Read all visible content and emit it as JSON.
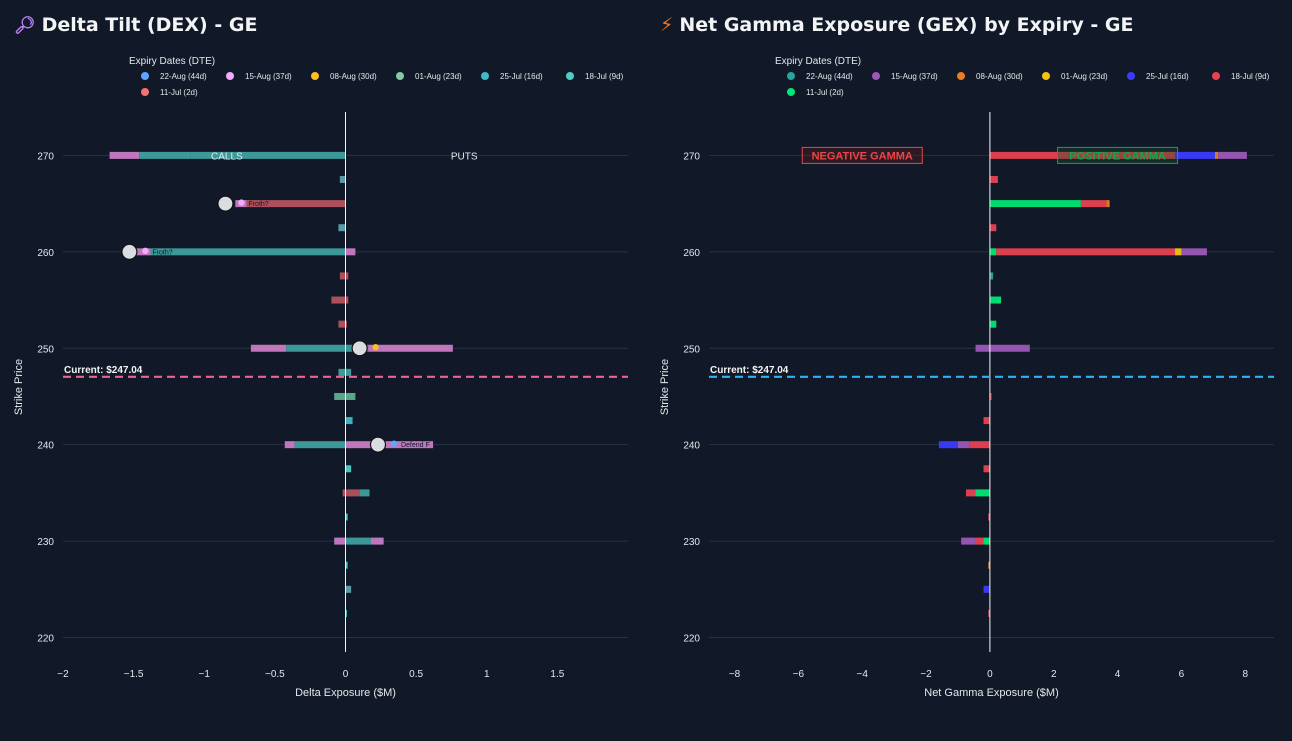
{
  "chart_data": [
    {
      "id": "dex",
      "type": "bar",
      "orientation": "horizontal",
      "title": "Delta Tilt (DEX) - GE",
      "title_icon": "magnifier-icon",
      "xlabel": "Delta Exposure ($M)",
      "ylabel": "Strike Price",
      "xlim": [
        -2,
        2
      ],
      "ylim": [
        218.5,
        274.5
      ],
      "xticks": [
        -2,
        -1.5,
        -1,
        -0.5,
        0,
        0.5,
        1,
        1.5
      ],
      "xtick_labels": [
        "−2",
        "−1.5",
        "−1",
        "−0.5",
        "0",
        "0.5",
        "1",
        "1.5"
      ],
      "yticks": [
        220,
        230,
        240,
        250,
        260,
        270
      ],
      "legend_title": "Expiry Dates (DTE)",
      "legend": [
        {
          "label": "22-Aug (44d)",
          "color": "#60a5fa"
        },
        {
          "label": "15-Aug (37d)",
          "color": "#f0abfc"
        },
        {
          "label": "08-Aug (30d)",
          "color": "#fbbf24"
        },
        {
          "label": "01-Aug (23d)",
          "color": "#86c9a4"
        },
        {
          "label": "25-Jul (16d)",
          "color": "#3fb8c9"
        },
        {
          "label": "18-Jul (9d)",
          "color": "#4ecdc4"
        },
        {
          "label": "11-Jul (2d)",
          "color": "#f87171"
        }
      ],
      "current_price": {
        "value": 247.04,
        "label": "Current: $247.04",
        "color": "#f06292"
      },
      "side_labels": [
        {
          "text": "CALLS",
          "x": -0.84,
          "strike": 270
        },
        {
          "text": "PUTS",
          "x": 0.84,
          "strike": 270
        }
      ],
      "rows": [
        {
          "strike": 270,
          "segments": [
            {
              "from": -1.67,
              "to": -1.46,
              "color": "#c97bc4"
            },
            {
              "from": -1.46,
              "to": -1.1,
              "color": "#3f9f9f"
            },
            {
              "from": -1.1,
              "to": 0,
              "color": "#3f9f9f"
            }
          ]
        },
        {
          "strike": 267.5,
          "segments": [
            {
              "from": -0.04,
              "to": 0,
              "color": "#5fa0b0"
            }
          ]
        },
        {
          "strike": 265,
          "segments": [
            {
              "from": -0.78,
              "to": -0.7,
              "color": "#c97bc4"
            },
            {
              "from": -0.7,
              "to": 0,
              "color": "#b5525e"
            }
          ]
        },
        {
          "strike": 262.5,
          "segments": [
            {
              "from": -0.05,
              "to": 0,
              "color": "#5fa0b0"
            }
          ]
        },
        {
          "strike": 260,
          "segments": [
            {
              "from": -1.5,
              "to": -1.38,
              "color": "#c97bc4"
            },
            {
              "from": -1.38,
              "to": 0,
              "color": "#3f9f9f"
            },
            {
              "from": 0,
              "to": 0.07,
              "color": "#c97bc4"
            }
          ]
        },
        {
          "strike": 257.5,
          "segments": [
            {
              "from": -0.04,
              "to": 0.02,
              "color": "#b5525e"
            }
          ]
        },
        {
          "strike": 255,
          "segments": [
            {
              "from": -0.1,
              "to": 0.02,
              "color": "#b5525e"
            }
          ]
        },
        {
          "strike": 252.5,
          "segments": [
            {
              "from": -0.05,
              "to": 0.01,
              "color": "#b5525e"
            }
          ]
        },
        {
          "strike": 250,
          "segments": [
            {
              "from": -0.67,
              "to": -0.42,
              "color": "#c97bc4"
            },
            {
              "from": -0.42,
              "to": 0,
              "color": "#3f9f9f"
            },
            {
              "from": 0,
              "to": 0.16,
              "color": "#3f9f9f"
            },
            {
              "from": 0.16,
              "to": 0.76,
              "color": "#c97bc4"
            }
          ]
        },
        {
          "strike": 247.5,
          "segments": [
            {
              "from": -0.05,
              "to": 0.04,
              "color": "#3f9f9f"
            }
          ]
        },
        {
          "strike": 245,
          "segments": [
            {
              "from": -0.08,
              "to": 0.07,
              "color": "#5fae8f"
            }
          ]
        },
        {
          "strike": 242.5,
          "segments": [
            {
              "from": 0,
              "to": 0.05,
              "color": "#3fb8c9"
            }
          ]
        },
        {
          "strike": 240,
          "segments": [
            {
              "from": -0.43,
              "to": -0.36,
              "color": "#c97bc4"
            },
            {
              "from": -0.36,
              "to": 0,
              "color": "#3f9f9f"
            },
            {
              "from": 0,
              "to": 0.62,
              "color": "#c97bc4"
            }
          ]
        },
        {
          "strike": 237.5,
          "segments": [
            {
              "from": 0,
              "to": 0.04,
              "color": "#4ecdc4"
            }
          ]
        },
        {
          "strike": 235,
          "segments": [
            {
              "from": -0.02,
              "to": 0.1,
              "color": "#b5525e"
            },
            {
              "from": 0.1,
              "to": 0.17,
              "color": "#3f9f9f"
            }
          ]
        },
        {
          "strike": 232.5,
          "segments": [
            {
              "from": 0,
              "to": 0.015,
              "color": "#4ecdc4"
            }
          ]
        },
        {
          "strike": 230,
          "segments": [
            {
              "from": -0.08,
              "to": 0,
              "color": "#c97bc4"
            },
            {
              "from": 0,
              "to": 0.18,
              "color": "#3f9f9f"
            },
            {
              "from": 0.18,
              "to": 0.27,
              "color": "#c97bc4"
            }
          ]
        },
        {
          "strike": 227.5,
          "segments": [
            {
              "from": 0,
              "to": 0.015,
              "color": "#4ecdc4"
            }
          ]
        },
        {
          "strike": 225,
          "segments": [
            {
              "from": 0,
              "to": 0.04,
              "color": "#5fa0b0"
            }
          ]
        },
        {
          "strike": 222.5,
          "segments": [
            {
              "from": 0,
              "to": 0.01,
              "color": "#4ecdc4"
            }
          ]
        }
      ],
      "markers": [
        {
          "strike": 265,
          "x": -0.85,
          "tag": "Froth?",
          "tag_color": "#f0abfc"
        },
        {
          "strike": 260,
          "x": -1.53,
          "tag": "Froth?",
          "tag_color": "#f0abfc"
        },
        {
          "strike": 250,
          "x": 0.1,
          "tag": "",
          "tag_color": "#fbbf24"
        },
        {
          "strike": 240,
          "x": 0.23,
          "tag": "Defend F",
          "tag_color": "#60a5fa"
        }
      ],
      "boxes": []
    },
    {
      "id": "gex",
      "type": "bar",
      "orientation": "horizontal",
      "title": "Net Gamma Exposure (GEX) by Expiry - GE",
      "title_icon": "lightning-icon",
      "xlabel": "Net Gamma Exposure ($M)",
      "ylabel": "Strike Price",
      "xlim": [
        -8.8,
        8.9
      ],
      "ylim": [
        218.5,
        274.5
      ],
      "xticks": [
        -8,
        -6,
        -4,
        -2,
        0,
        2,
        4,
        6,
        8
      ],
      "xtick_labels": [
        "−8",
        "−6",
        "−4",
        "−2",
        "0",
        "2",
        "4",
        "6",
        "8"
      ],
      "yticks": [
        220,
        230,
        240,
        250,
        260,
        270
      ],
      "legend_title": "Expiry Dates (DTE)",
      "legend": [
        {
          "label": "22-Aug (44d)",
          "color": "#26a69a"
        },
        {
          "label": "15-Aug (37d)",
          "color": "#9b59b6"
        },
        {
          "label": "08-Aug (30d)",
          "color": "#e67e22"
        },
        {
          "label": "01-Aug (23d)",
          "color": "#f1c40f"
        },
        {
          "label": "25-Jul (16d)",
          "color": "#3b3bff"
        },
        {
          "label": "18-Jul (9d)",
          "color": "#e84150"
        },
        {
          "label": "11-Jul (2d)",
          "color": "#00e676"
        }
      ],
      "current_price": {
        "value": 247.04,
        "label": "Current: $247.04",
        "color": "#29b6f6"
      },
      "side_labels": [],
      "rows": [
        {
          "strike": 270,
          "segments": [
            {
              "from": 0,
              "to": 5.8,
              "color": "#e84150"
            },
            {
              "from": 5.8,
              "to": 7.05,
              "color": "#3b3bff"
            },
            {
              "from": 7.05,
              "to": 7.15,
              "color": "#e67e22"
            },
            {
              "from": 7.15,
              "to": 8.05,
              "color": "#9b59b6"
            }
          ]
        },
        {
          "strike": 267.5,
          "segments": [
            {
              "from": 0,
              "to": 0.25,
              "color": "#e84150"
            }
          ]
        },
        {
          "strike": 265,
          "segments": [
            {
              "from": 0,
              "to": 2.85,
              "color": "#00e676"
            },
            {
              "from": 2.85,
              "to": 3.65,
              "color": "#e84150"
            },
            {
              "from": 3.65,
              "to": 3.75,
              "color": "#e67e22"
            }
          ]
        },
        {
          "strike": 262.5,
          "segments": [
            {
              "from": 0,
              "to": 0.2,
              "color": "#e84150"
            }
          ]
        },
        {
          "strike": 260,
          "segments": [
            {
              "from": 0,
              "to": 0.2,
              "color": "#00e676"
            },
            {
              "from": 0.2,
              "to": 5.8,
              "color": "#e84150"
            },
            {
              "from": 5.8,
              "to": 6.0,
              "color": "#f1c40f"
            },
            {
              "from": 6.0,
              "to": 6.8,
              "color": "#9b59b6"
            }
          ]
        },
        {
          "strike": 257.5,
          "segments": [
            {
              "from": 0,
              "to": 0.1,
              "color": "#26a69a"
            }
          ]
        },
        {
          "strike": 255,
          "segments": [
            {
              "from": 0,
              "to": 0.35,
              "color": "#00e676"
            }
          ]
        },
        {
          "strike": 252.5,
          "segments": [
            {
              "from": 0,
              "to": 0.2,
              "color": "#00e676"
            }
          ]
        },
        {
          "strike": 250,
          "segments": [
            {
              "from": -0.45,
              "to": 0,
              "color": "#9b59b6"
            },
            {
              "from": 0,
              "to": 1.25,
              "color": "#9b59b6"
            }
          ]
        },
        {
          "strike": 245,
          "segments": [
            {
              "from": 0,
              "to": 0.05,
              "color": "#e84150"
            }
          ]
        },
        {
          "strike": 242.5,
          "segments": [
            {
              "from": -0.2,
              "to": 0,
              "color": "#e84150"
            }
          ]
        },
        {
          "strike": 240,
          "segments": [
            {
              "from": -1.6,
              "to": -1.0,
              "color": "#3b3bff"
            },
            {
              "from": -1.0,
              "to": -0.65,
              "color": "#9b59b6"
            },
            {
              "from": -0.65,
              "to": 0,
              "color": "#e84150"
            }
          ]
        },
        {
          "strike": 237.5,
          "segments": [
            {
              "from": -0.2,
              "to": 0,
              "color": "#e84150"
            }
          ]
        },
        {
          "strike": 235,
          "segments": [
            {
              "from": -0.75,
              "to": -0.45,
              "color": "#e84150"
            },
            {
              "from": -0.45,
              "to": 0,
              "color": "#00e676"
            }
          ]
        },
        {
          "strike": 232.5,
          "segments": [
            {
              "from": -0.05,
              "to": 0,
              "color": "#e84150"
            }
          ]
        },
        {
          "strike": 230,
          "segments": [
            {
              "from": -0.9,
              "to": -0.45,
              "color": "#9b59b6"
            },
            {
              "from": -0.45,
              "to": -0.2,
              "color": "#e84150"
            },
            {
              "from": -0.2,
              "to": 0,
              "color": "#00e676"
            }
          ]
        },
        {
          "strike": 227.5,
          "segments": [
            {
              "from": -0.05,
              "to": 0,
              "color": "#e67e22"
            }
          ]
        },
        {
          "strike": 225,
          "segments": [
            {
              "from": -0.2,
              "to": 0,
              "color": "#3b3bff"
            }
          ]
        },
        {
          "strike": 222.5,
          "segments": [
            {
              "from": -0.05,
              "to": 0,
              "color": "#e84150"
            }
          ]
        }
      ],
      "markers": [],
      "boxes": [
        {
          "text": "NEGATIVE GAMMA",
          "x": -4.0,
          "strike": 270,
          "text_color": "#ef4444",
          "border": "#ef4444",
          "fill": "rgba(127,29,29,0.25)"
        },
        {
          "text": "POSITIVE GAMMA",
          "x": 4.0,
          "strike": 270,
          "text_color": "#16a34a",
          "border": "#16a34a",
          "fill": "rgba(20,83,45,0.35)"
        }
      ]
    }
  ]
}
